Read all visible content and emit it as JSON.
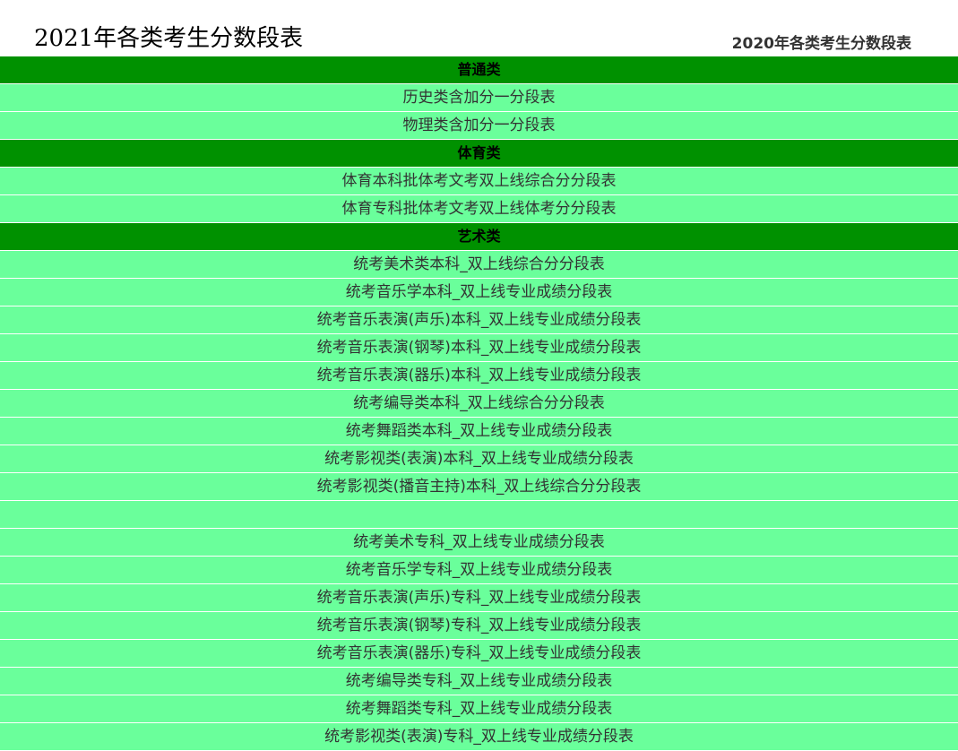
{
  "header": {
    "title": "2021年各类考生分数段表",
    "link_2020": "2020年各类考生分数段表"
  },
  "colors": {
    "category_bg": "#009100",
    "item_bg": "#6aff9b"
  },
  "rows": [
    {
      "type": "cat",
      "label": "普通类"
    },
    {
      "type": "item",
      "label": "历史类含加分一分段表"
    },
    {
      "type": "item",
      "label": "物理类含加分一分段表"
    },
    {
      "type": "cat",
      "label": "体育类"
    },
    {
      "type": "item",
      "label": "体育本科批体考文考双上线综合分分段表"
    },
    {
      "type": "item",
      "label": "体育专科批体考文考双上线体考分分段表"
    },
    {
      "type": "cat",
      "label": "艺术类"
    },
    {
      "type": "item",
      "label": "统考美术类本科_双上线综合分分段表"
    },
    {
      "type": "item",
      "label": "统考音乐学本科_双上线专业成绩分段表"
    },
    {
      "type": "item",
      "label": "统考音乐表演(声乐)本科_双上线专业成绩分段表"
    },
    {
      "type": "item",
      "label": "统考音乐表演(钢琴)本科_双上线专业成绩分段表"
    },
    {
      "type": "item",
      "label": "统考音乐表演(器乐)本科_双上线专业成绩分段表"
    },
    {
      "type": "item",
      "label": "统考编导类本科_双上线综合分分段表"
    },
    {
      "type": "item",
      "label": "统考舞蹈类本科_双上线专业成绩分段表"
    },
    {
      "type": "item",
      "label": "统考影视类(表演)本科_双上线专业成绩分段表"
    },
    {
      "type": "item",
      "label": "统考影视类(播音主持)本科_双上线综合分分段表"
    },
    {
      "type": "item",
      "label": ""
    },
    {
      "type": "item",
      "label": "统考美术专科_双上线专业成绩分段表"
    },
    {
      "type": "item",
      "label": "统考音乐学专科_双上线专业成绩分段表"
    },
    {
      "type": "item",
      "label": "统考音乐表演(声乐)专科_双上线专业成绩分段表"
    },
    {
      "type": "item",
      "label": "统考音乐表演(钢琴)专科_双上线专业成绩分段表"
    },
    {
      "type": "item",
      "label": "统考音乐表演(器乐)专科_双上线专业成绩分段表"
    },
    {
      "type": "item",
      "label": "统考编导类专科_双上线专业成绩分段表"
    },
    {
      "type": "item",
      "label": "统考舞蹈类专科_双上线专业成绩分段表"
    },
    {
      "type": "item",
      "label": "统考影视类(表演)专科_双上线专业成绩分段表"
    }
  ]
}
